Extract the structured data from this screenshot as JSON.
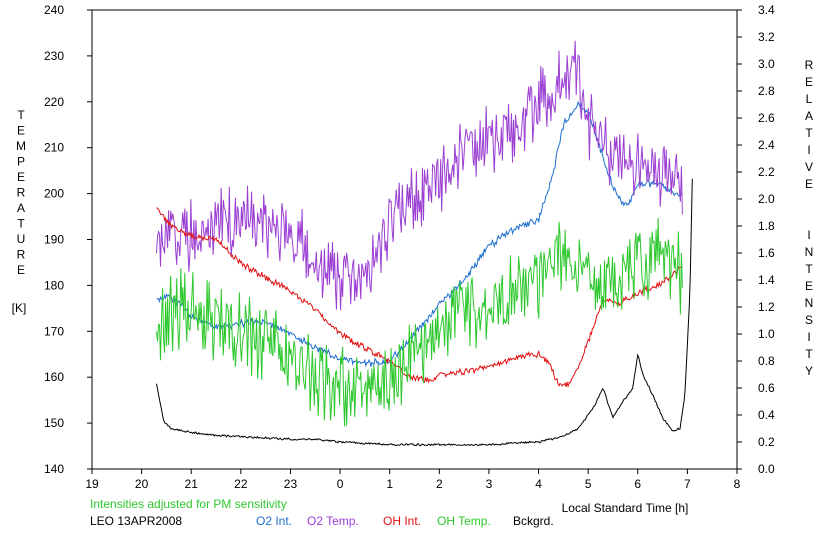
{
  "chart_data": {
    "type": "line",
    "x_label": "Local Standard Time [h]",
    "left_axis": {
      "letters": [
        "T",
        "E",
        "M",
        "P",
        "E",
        "R",
        "A",
        "T",
        "U",
        "R",
        "E"
      ],
      "unit": "[K]",
      "range": [
        140,
        240
      ],
      "ticks": [
        "140",
        "150",
        "160",
        "170",
        "180",
        "190",
        "200",
        "210",
        "220",
        "230",
        "240"
      ]
    },
    "right_axis": {
      "letters": [
        "R",
        "E",
        "L",
        "A",
        "T",
        "I",
        "V",
        "E",
        "I",
        "N",
        "T",
        "E",
        "N",
        "S",
        "I",
        "T",
        "Y"
      ],
      "range": [
        0.0,
        3.4
      ],
      "ticks": [
        "0.0",
        "0.2",
        "0.4",
        "0.6",
        "0.8",
        "1.0",
        "1.2",
        "1.4",
        "1.6",
        "1.8",
        "2.0",
        "2.2",
        "2.4",
        "2.6",
        "2.8",
        "3.0",
        "3.2",
        "3.4"
      ]
    },
    "x_ticks": [
      "19",
      "20",
      "21",
      "22",
      "23",
      "0",
      "1",
      "2",
      "3",
      "4",
      "5",
      "6",
      "7",
      "8"
    ],
    "x_range": [
      19,
      32
    ],
    "note": "Intensities adjusted for PM sensitivity",
    "station": "LEO 13APR2008",
    "legend": [
      "O2 Int.",
      "O2 Temp.",
      "OH Int.",
      "OH Temp.",
      "Bckgrd."
    ],
    "series": [
      {
        "name": "O2 Int.",
        "axis": "right",
        "color": "#1f6fd0",
        "noise": 0.03,
        "x": [
          20.3,
          20.5,
          20.8,
          21.0,
          21.5,
          22.0,
          22.5,
          23.0,
          23.5,
          24.0,
          24.5,
          25.0,
          25.5,
          26.0,
          26.5,
          27.0,
          27.5,
          28.0,
          28.3,
          28.5,
          28.8,
          29.0,
          29.3,
          29.6,
          29.8,
          30.0,
          30.3,
          30.6,
          30.9
        ],
        "y": [
          1.25,
          1.28,
          1.22,
          1.12,
          1.05,
          1.08,
          1.1,
          1.0,
          0.9,
          0.82,
          0.78,
          0.8,
          1.0,
          1.22,
          1.4,
          1.65,
          1.78,
          1.85,
          2.2,
          2.55,
          2.7,
          2.65,
          2.3,
          2.0,
          1.95,
          2.1,
          2.12,
          2.08,
          2.02
        ]
      },
      {
        "name": "O2 Temp.",
        "axis": "left",
        "color": "#9b3fd3",
        "noise": 8,
        "x": [
          20.3,
          20.8,
          21.5,
          22.0,
          22.5,
          23.0,
          23.5,
          24.0,
          24.3,
          24.5,
          24.8,
          25.0,
          25.5,
          26.0,
          26.5,
          27.0,
          27.5,
          28.0,
          28.5,
          28.8,
          29.0,
          29.5,
          30.0,
          30.5,
          30.9
        ],
        "y": [
          192,
          190,
          193,
          195,
          193,
          192,
          186,
          182,
          181,
          183,
          185,
          195,
          200,
          203,
          210,
          212,
          213,
          220,
          225,
          226,
          215,
          208,
          206,
          205,
          202
        ]
      },
      {
        "name": "OH Int.",
        "axis": "right",
        "color": "#e01010",
        "noise": 0.025,
        "x": [
          20.3,
          20.6,
          21.0,
          21.5,
          22.0,
          22.5,
          23.0,
          23.5,
          24.0,
          24.5,
          25.0,
          25.4,
          25.8,
          26.0,
          26.5,
          27.0,
          27.5,
          28.0,
          28.2,
          28.4,
          28.6,
          28.8,
          29.0,
          29.3,
          29.6,
          30.0,
          30.5,
          30.9
        ],
        "y": [
          1.95,
          1.8,
          1.72,
          1.7,
          1.52,
          1.42,
          1.32,
          1.18,
          1.0,
          0.9,
          0.8,
          0.68,
          0.65,
          0.7,
          0.72,
          0.75,
          0.82,
          0.85,
          0.8,
          0.62,
          0.62,
          0.75,
          0.95,
          1.25,
          1.22,
          1.3,
          1.38,
          1.5
        ]
      },
      {
        "name": "OH Temp.",
        "axis": "left",
        "color": "#2ec82e",
        "noise": 9,
        "x": [
          20.3,
          20.8,
          21.5,
          22.0,
          22.5,
          23.0,
          23.5,
          24.0,
          24.5,
          25.0,
          25.5,
          26.0,
          26.5,
          27.0,
          27.5,
          28.0,
          28.3,
          28.6,
          29.0,
          29.5,
          30.0,
          30.5,
          30.9
        ],
        "y": [
          172,
          175,
          172,
          170,
          168,
          165,
          160,
          158,
          157,
          158,
          165,
          170,
          175,
          175,
          178,
          180,
          186,
          185,
          182,
          182,
          185,
          186,
          182
        ]
      },
      {
        "name": "Bckgrd.",
        "axis": "right",
        "color": "#000000",
        "noise": 0.008,
        "x": [
          20.3,
          20.45,
          20.6,
          21.0,
          21.5,
          22.0,
          22.5,
          23.0,
          23.5,
          24.0,
          24.5,
          25.0,
          25.5,
          26.0,
          26.5,
          27.0,
          27.5,
          28.0,
          28.5,
          28.8,
          29.1,
          29.3,
          29.5,
          29.7,
          29.8,
          29.9,
          30.0,
          30.1,
          30.3,
          30.5,
          30.7,
          30.85,
          30.95,
          31.05,
          31.1
        ],
        "y": [
          0.63,
          0.35,
          0.3,
          0.27,
          0.25,
          0.24,
          0.23,
          0.22,
          0.22,
          0.2,
          0.19,
          0.18,
          0.18,
          0.18,
          0.18,
          0.18,
          0.19,
          0.2,
          0.24,
          0.3,
          0.45,
          0.6,
          0.38,
          0.5,
          0.55,
          0.6,
          0.85,
          0.7,
          0.55,
          0.38,
          0.28,
          0.3,
          0.55,
          1.3,
          2.15
        ]
      }
    ]
  }
}
